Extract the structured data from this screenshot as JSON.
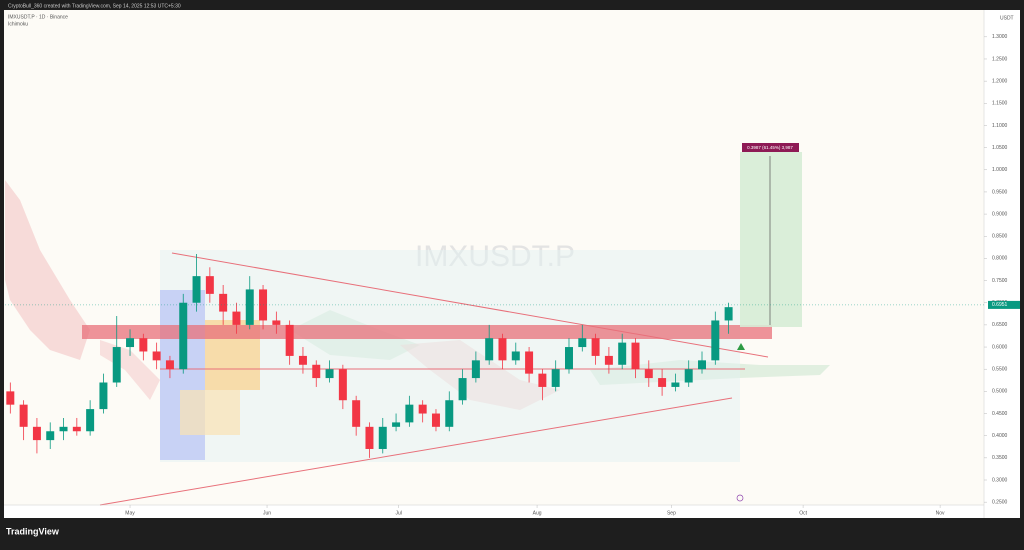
{
  "header": {
    "credit": "CryptoBull_360 created with TradingView.com, Sep 14, 2025 12:53 UTC+5:30",
    "symbol_line": "IMXUSDT.P · 1D · Binance",
    "indicator": "Ichimoku"
  },
  "chart_data": {
    "type": "candlestick",
    "watermark": "IMXUSDT.P",
    "y_unit": "USDT",
    "colors": {
      "up": "#089981",
      "down": "#f23645"
    },
    "candles": [
      [
        0.5,
        0.52,
        0.45,
        0.47
      ],
      [
        0.47,
        0.48,
        0.39,
        0.42
      ],
      [
        0.42,
        0.44,
        0.36,
        0.39
      ],
      [
        0.39,
        0.43,
        0.37,
        0.41
      ],
      [
        0.41,
        0.44,
        0.39,
        0.42
      ],
      [
        0.42,
        0.44,
        0.4,
        0.41
      ],
      [
        0.41,
        0.48,
        0.4,
        0.46
      ],
      [
        0.46,
        0.54,
        0.45,
        0.52
      ],
      [
        0.52,
        0.67,
        0.51,
        0.6
      ],
      [
        0.6,
        0.64,
        0.58,
        0.62
      ],
      [
        0.62,
        0.63,
        0.57,
        0.59
      ],
      [
        0.59,
        0.61,
        0.55,
        0.57
      ],
      [
        0.57,
        0.58,
        0.53,
        0.55
      ],
      [
        0.55,
        0.72,
        0.54,
        0.7
      ],
      [
        0.7,
        0.81,
        0.68,
        0.76
      ],
      [
        0.76,
        0.78,
        0.7,
        0.72
      ],
      [
        0.72,
        0.74,
        0.65,
        0.68
      ],
      [
        0.68,
        0.7,
        0.63,
        0.65
      ],
      [
        0.65,
        0.76,
        0.64,
        0.73
      ],
      [
        0.73,
        0.74,
        0.64,
        0.66
      ],
      [
        0.66,
        0.68,
        0.63,
        0.65
      ],
      [
        0.65,
        0.66,
        0.56,
        0.58
      ],
      [
        0.58,
        0.6,
        0.54,
        0.56
      ],
      [
        0.56,
        0.57,
        0.51,
        0.53
      ],
      [
        0.53,
        0.57,
        0.52,
        0.55
      ],
      [
        0.55,
        0.56,
        0.46,
        0.48
      ],
      [
        0.48,
        0.49,
        0.4,
        0.42
      ],
      [
        0.42,
        0.43,
        0.35,
        0.37
      ],
      [
        0.37,
        0.44,
        0.36,
        0.42
      ],
      [
        0.42,
        0.45,
        0.41,
        0.43
      ],
      [
        0.43,
        0.49,
        0.42,
        0.47
      ],
      [
        0.47,
        0.48,
        0.43,
        0.45
      ],
      [
        0.45,
        0.46,
        0.41,
        0.42
      ],
      [
        0.42,
        0.5,
        0.41,
        0.48
      ],
      [
        0.48,
        0.55,
        0.47,
        0.53
      ],
      [
        0.53,
        0.59,
        0.52,
        0.57
      ],
      [
        0.57,
        0.65,
        0.56,
        0.62
      ],
      [
        0.62,
        0.63,
        0.55,
        0.57
      ],
      [
        0.57,
        0.61,
        0.56,
        0.59
      ],
      [
        0.59,
        0.6,
        0.52,
        0.54
      ],
      [
        0.54,
        0.55,
        0.48,
        0.51
      ],
      [
        0.51,
        0.57,
        0.5,
        0.55
      ],
      [
        0.55,
        0.62,
        0.54,
        0.6
      ],
      [
        0.6,
        0.65,
        0.59,
        0.62
      ],
      [
        0.62,
        0.63,
        0.56,
        0.58
      ],
      [
        0.58,
        0.6,
        0.54,
        0.56
      ],
      [
        0.56,
        0.63,
        0.55,
        0.61
      ],
      [
        0.61,
        0.62,
        0.53,
        0.55
      ],
      [
        0.55,
        0.57,
        0.51,
        0.53
      ],
      [
        0.53,
        0.55,
        0.49,
        0.51
      ],
      [
        0.51,
        0.54,
        0.5,
        0.52
      ],
      [
        0.52,
        0.57,
        0.51,
        0.55
      ],
      [
        0.55,
        0.59,
        0.54,
        0.57
      ],
      [
        0.57,
        0.68,
        0.56,
        0.66
      ],
      [
        0.66,
        0.7,
        0.63,
        0.69
      ]
    ],
    "xlim": [
      -0.4,
      73.2
    ],
    "xticks": [
      {
        "value": 9,
        "label": "May"
      },
      {
        "value": 19.3,
        "label": "Jun"
      },
      {
        "value": 29.2,
        "label": "Jul"
      },
      {
        "value": 39.6,
        "label": "Aug"
      },
      {
        "value": 49.7,
        "label": "Sep"
      },
      {
        "value": 59.6,
        "label": "Oct"
      },
      {
        "value": 69.9,
        "label": "Nov"
      }
    ],
    "ylim": [
      0.2436,
      1.356
    ],
    "yticks": [
      {
        "value": 0.25,
        "label": "0.2500"
      },
      {
        "value": 0.3,
        "label": "0.3000"
      },
      {
        "value": 0.35,
        "label": "0.3500"
      },
      {
        "value": 0.4,
        "label": "0.4000"
      },
      {
        "value": 0.45,
        "label": "0.4500"
      },
      {
        "value": 0.5,
        "label": "0.5000"
      },
      {
        "value": 0.55,
        "label": "0.5500"
      },
      {
        "value": 0.6,
        "label": "0.6000"
      },
      {
        "value": 0.65,
        "label": "0.6500"
      },
      {
        "value": 0.7,
        "label": "0.7000"
      },
      {
        "value": 0.75,
        "label": "0.7500"
      },
      {
        "value": 0.8,
        "label": "0.8000"
      },
      {
        "value": 0.85,
        "label": "0.8500"
      },
      {
        "value": 0.9,
        "label": "0.9000"
      },
      {
        "value": 0.95,
        "label": "0.9500"
      },
      {
        "value": 1.0,
        "label": "1.0000"
      },
      {
        "value": 1.05,
        "label": "1.0500"
      },
      {
        "value": 1.1,
        "label": "1.1000"
      },
      {
        "value": 1.15,
        "label": "1.1500"
      },
      {
        "value": 1.2,
        "label": "1.2000"
      },
      {
        "value": 1.25,
        "label": "1.2500"
      },
      {
        "value": 1.3,
        "label": "1.3000"
      }
    ],
    "last_price": 0.6951,
    "position_label": "0.3987 (61.45%) 3,987"
  },
  "footer": {
    "brand": "TradingView"
  }
}
